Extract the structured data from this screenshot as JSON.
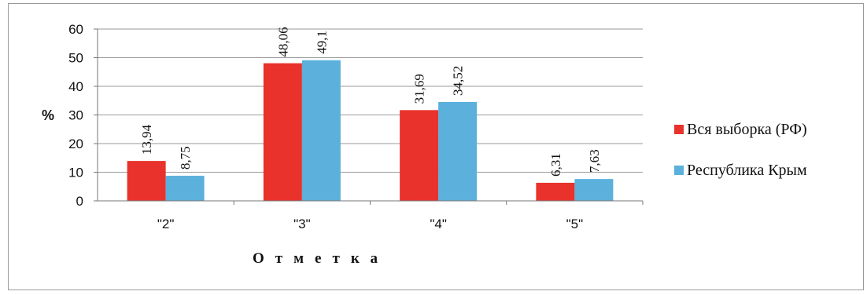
{
  "chart_data": {
    "type": "bar",
    "categories": [
      "\"2\"",
      "\"3\"",
      "\"4\"",
      "\"5\""
    ],
    "series": [
      {
        "name": "Вся выборка (РФ)",
        "values": [
          13.94,
          48.06,
          31.69,
          6.31
        ],
        "labels": [
          "13,94",
          "48,06",
          "31,69",
          "6,31"
        ],
        "color": "#e8322b"
      },
      {
        "name": "Республика Крым",
        "values": [
          8.75,
          49.1,
          34.52,
          7.63
        ],
        "labels": [
          "8,75",
          "49,1",
          "34,52",
          "7,63"
        ],
        "color": "#5bb0dc"
      }
    ],
    "title": "",
    "xlabel": "Отметка",
    "ylabel": "%",
    "ylim": [
      0,
      60
    ],
    "yticks": [
      "0",
      "10",
      "20",
      "30",
      "40",
      "50",
      "60"
    ],
    "grid": true,
    "legend_position": "right"
  }
}
